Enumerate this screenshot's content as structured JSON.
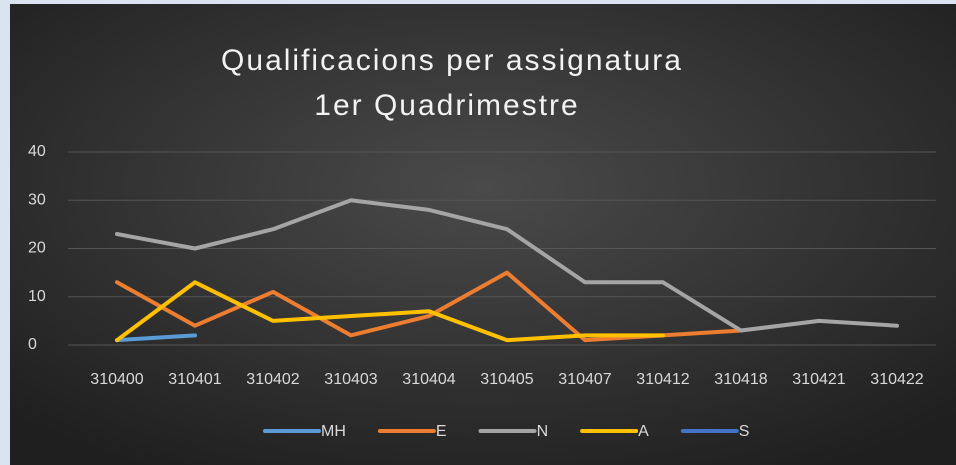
{
  "chart_data": {
    "type": "line",
    "title": "Qualificacions per assignatura",
    "subtitle": "1er Quadrimestre",
    "categories": [
      "310400",
      "310401",
      "310402",
      "310403",
      "310404",
      "310405",
      "310407",
      "310412",
      "310418",
      "310421",
      "310422"
    ],
    "series": [
      {
        "name": "MH",
        "color": "#5b9bd5",
        "values": [
          1,
          2,
          null,
          null,
          null,
          null,
          null,
          null,
          null,
          null,
          null
        ]
      },
      {
        "name": "E",
        "color": "#ed7d31",
        "values": [
          13,
          4,
          11,
          2,
          6,
          15,
          1,
          2,
          3,
          null,
          null
        ]
      },
      {
        "name": "N",
        "color": "#a5a5a5",
        "values": [
          23,
          20,
          24,
          30,
          28,
          24,
          13,
          13,
          3,
          5,
          4
        ]
      },
      {
        "name": "A",
        "color": "#ffc000",
        "values": [
          1,
          13,
          5,
          6,
          7,
          1,
          2,
          2,
          null,
          null,
          null
        ]
      },
      {
        "name": "S",
        "color": "#4472c4",
        "values": [
          null,
          null,
          null,
          null,
          null,
          null,
          null,
          null,
          null,
          null,
          null
        ]
      }
    ],
    "ylim": [
      0,
      40
    ],
    "yticks": [
      0,
      10,
      20,
      30,
      40
    ],
    "grid": true,
    "legend": "bottom"
  }
}
